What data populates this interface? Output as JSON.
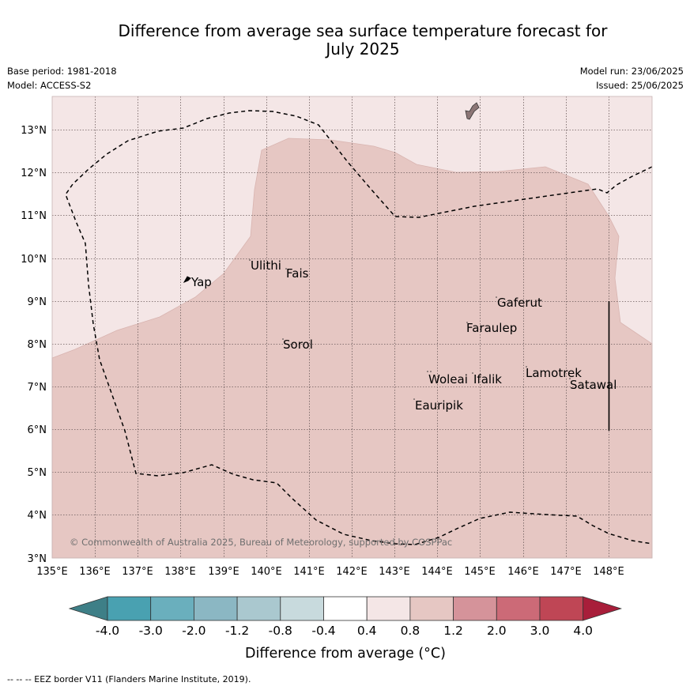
{
  "title_line1": "Difference from average sea surface temperature forecast for",
  "title_line2": "July 2025",
  "base_period": "Base period: 1981-2018",
  "model": "Model: ACCESS-S2",
  "model_run": "Model run: 23/06/2025",
  "issued": "Issued: 25/06/2025",
  "copyright": "© Commonwealth of Australia 2025, Bureau of Meteorology, supported by COSPPac",
  "footnote": "-- -- -- EEZ border V11 (Flanders Marine Institute, 2019).",
  "colorbar_label": "Difference from average (°C)",
  "colors": {
    "bg_category": "#f4e6e6",
    "main_category": "#e6c7c3",
    "land": "#8c7676"
  },
  "map": {
    "lon_ticks": [
      "135°E",
      "136°E",
      "137°E",
      "138°E",
      "139°E",
      "140°E",
      "141°E",
      "142°E",
      "143°E",
      "144°E",
      "145°E",
      "146°E",
      "147°E",
      "148°E"
    ],
    "lat_ticks": [
      "3°N",
      "4°N",
      "5°N",
      "6°N",
      "7°N",
      "8°N",
      "9°N",
      "10°N",
      "11°N",
      "12°N",
      "13°N"
    ],
    "places": [
      "Yap",
      "Ulithi",
      "Fais",
      "Sorol",
      "Gaferut",
      "Faraulep",
      "Woleai",
      "Ifalik",
      "Lamotrek",
      "Satawal",
      "Eauripik"
    ]
  },
  "colorbar": {
    "ticks": [
      "-4.0",
      "-3.0",
      "-2.0",
      "-1.2",
      "-0.8",
      "-0.4",
      "0.4",
      "0.8",
      "1.2",
      "2.0",
      "3.0",
      "4.0"
    ],
    "colors": [
      "#3e7f87",
      "#49a1b1",
      "#6aafbd",
      "#8bb7c3",
      "#aac8cf",
      "#c8dadd",
      "#ffffff",
      "#f4e6e6",
      "#e6c7c3",
      "#d5939a",
      "#cc6a77",
      "#bf4655",
      "#a81e3a"
    ]
  }
}
